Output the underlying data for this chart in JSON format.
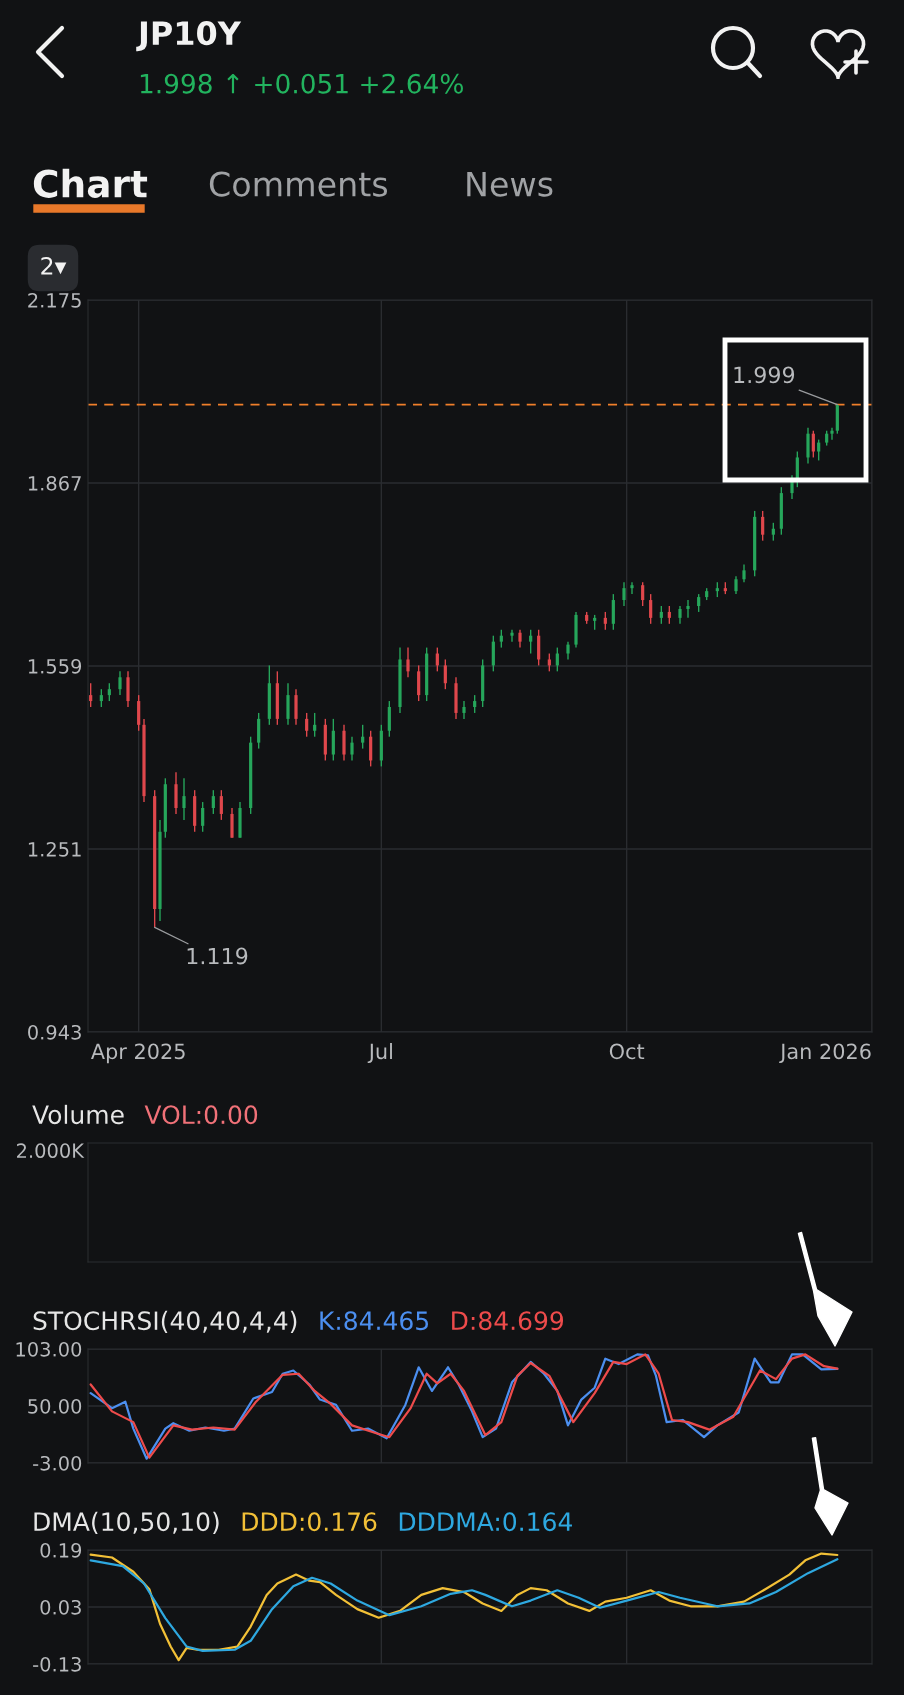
{
  "chart_data": [
    {
      "type": "candlestick",
      "title": "JP10Y",
      "subtitle": "1.998 ↑ +0.051 +2.64%",
      "annotations": [
        "Chart",
        "Comments",
        "News",
        "2▾",
        {
          "text": "1.119",
          "x": "2025-04-07",
          "y": 1.119
        },
        {
          "text": "1.999",
          "x": "2025-12-19",
          "y": 1.999
        }
      ],
      "x": [
        "2025-03-14",
        "2025-03-18",
        "2025-03-21",
        "2025-03-25",
        "2025-03-28",
        "2025-04-01",
        "2025-04-03",
        "2025-04-07",
        "2025-04-09",
        "2025-04-11",
        "2025-04-15",
        "2025-04-18",
        "2025-04-22",
        "2025-04-25",
        "2025-04-29",
        "2025-05-02",
        "2025-05-06",
        "2025-05-09",
        "2025-05-13",
        "2025-05-16",
        "2025-05-20",
        "2025-05-23",
        "2025-05-27",
        "2025-05-30",
        "2025-06-03",
        "2025-06-06",
        "2025-06-10",
        "2025-06-13",
        "2025-06-17",
        "2025-06-20",
        "2025-06-24",
        "2025-06-27",
        "2025-07-01",
        "2025-07-04",
        "2025-07-08",
        "2025-07-11",
        "2025-07-15",
        "2025-07-18",
        "2025-07-22",
        "2025-07-25",
        "2025-07-29",
        "2025-08-01",
        "2025-08-05",
        "2025-08-08",
        "2025-08-12",
        "2025-08-15",
        "2025-08-19",
        "2025-08-22",
        "2025-08-26",
        "2025-08-29",
        "2025-09-02",
        "2025-09-05",
        "2025-09-09",
        "2025-09-12",
        "2025-09-16",
        "2025-09-19",
        "2025-09-23",
        "2025-09-26",
        "2025-09-30",
        "2025-10-03",
        "2025-10-07",
        "2025-10-10",
        "2025-10-14",
        "2025-10-17",
        "2025-10-21",
        "2025-10-24",
        "2025-10-28",
        "2025-10-31",
        "2025-11-04",
        "2025-11-07",
        "2025-11-11",
        "2025-11-14",
        "2025-11-18",
        "2025-11-21",
        "2025-11-25",
        "2025-11-28",
        "2025-12-02",
        "2025-12-04",
        "2025-12-08",
        "2025-12-10",
        "2025-12-12",
        "2025-12-15",
        "2025-12-17",
        "2025-12-19"
      ],
      "ohlc": [
        [
          1.51,
          1.53,
          1.49,
          1.5
        ],
        [
          1.5,
          1.52,
          1.49,
          1.51
        ],
        [
          1.51,
          1.53,
          1.5,
          1.52
        ],
        [
          1.52,
          1.55,
          1.51,
          1.54
        ],
        [
          1.54,
          1.55,
          1.49,
          1.5
        ],
        [
          1.5,
          1.51,
          1.45,
          1.46
        ],
        [
          1.46,
          1.47,
          1.33,
          1.34
        ],
        [
          1.34,
          1.35,
          1.119,
          1.15
        ],
        [
          1.15,
          1.3,
          1.13,
          1.28
        ],
        [
          1.28,
          1.37,
          1.27,
          1.36
        ],
        [
          1.36,
          1.38,
          1.31,
          1.32
        ],
        [
          1.32,
          1.37,
          1.3,
          1.34
        ],
        [
          1.34,
          1.35,
          1.28,
          1.29
        ],
        [
          1.29,
          1.33,
          1.28,
          1.32
        ],
        [
          1.32,
          1.35,
          1.31,
          1.34
        ],
        [
          1.34,
          1.35,
          1.3,
          1.31
        ],
        [
          1.31,
          1.32,
          1.27,
          1.27
        ],
        [
          1.27,
          1.33,
          1.27,
          1.32
        ],
        [
          1.32,
          1.44,
          1.31,
          1.43
        ],
        [
          1.43,
          1.48,
          1.42,
          1.47
        ],
        [
          1.47,
          1.56,
          1.46,
          1.53
        ],
        [
          1.53,
          1.55,
          1.46,
          1.47
        ],
        [
          1.47,
          1.53,
          1.46,
          1.51
        ],
        [
          1.51,
          1.52,
          1.46,
          1.47
        ],
        [
          1.47,
          1.48,
          1.44,
          1.45
        ],
        [
          1.45,
          1.48,
          1.44,
          1.46
        ],
        [
          1.46,
          1.47,
          1.4,
          1.41
        ],
        [
          1.41,
          1.47,
          1.4,
          1.45
        ],
        [
          1.45,
          1.46,
          1.4,
          1.41
        ],
        [
          1.41,
          1.44,
          1.4,
          1.43
        ],
        [
          1.43,
          1.46,
          1.42,
          1.44
        ],
        [
          1.44,
          1.45,
          1.39,
          1.4
        ],
        [
          1.4,
          1.46,
          1.39,
          1.45
        ],
        [
          1.45,
          1.5,
          1.44,
          1.49
        ],
        [
          1.49,
          1.59,
          1.48,
          1.57
        ],
        [
          1.57,
          1.59,
          1.54,
          1.55
        ],
        [
          1.55,
          1.56,
          1.5,
          1.51
        ],
        [
          1.51,
          1.59,
          1.5,
          1.58
        ],
        [
          1.58,
          1.59,
          1.55,
          1.56
        ],
        [
          1.56,
          1.57,
          1.52,
          1.53
        ],
        [
          1.53,
          1.54,
          1.47,
          1.48
        ],
        [
          1.48,
          1.5,
          1.47,
          1.49
        ],
        [
          1.49,
          1.51,
          1.48,
          1.5
        ],
        [
          1.5,
          1.57,
          1.49,
          1.56
        ],
        [
          1.56,
          1.61,
          1.55,
          1.6
        ],
        [
          1.6,
          1.62,
          1.59,
          1.61
        ],
        [
          1.61,
          1.62,
          1.6,
          1.615
        ],
        [
          1.615,
          1.62,
          1.59,
          1.6
        ],
        [
          1.6,
          1.62,
          1.58,
          1.61
        ],
        [
          1.61,
          1.62,
          1.56,
          1.57
        ],
        [
          1.57,
          1.58,
          1.55,
          1.56
        ],
        [
          1.56,
          1.59,
          1.55,
          1.58
        ],
        [
          1.58,
          1.6,
          1.57,
          1.595
        ],
        [
          1.595,
          1.65,
          1.59,
          1.645
        ],
        [
          1.645,
          1.65,
          1.63,
          1.635
        ],
        [
          1.635,
          1.645,
          1.62,
          1.64
        ],
        [
          1.64,
          1.65,
          1.62,
          1.63
        ],
        [
          1.63,
          1.68,
          1.62,
          1.67
        ],
        [
          1.67,
          1.7,
          1.66,
          1.69
        ],
        [
          1.69,
          1.7,
          1.68,
          1.695
        ],
        [
          1.695,
          1.7,
          1.66,
          1.67
        ],
        [
          1.67,
          1.68,
          1.63,
          1.64
        ],
        [
          1.64,
          1.66,
          1.63,
          1.65
        ],
        [
          1.65,
          1.66,
          1.63,
          1.64
        ],
        [
          1.64,
          1.66,
          1.63,
          1.655
        ],
        [
          1.655,
          1.67,
          1.64,
          1.66
        ],
        [
          1.66,
          1.68,
          1.65,
          1.675
        ],
        [
          1.675,
          1.69,
          1.67,
          1.685
        ],
        [
          1.685,
          1.7,
          1.675,
          1.69
        ],
        [
          1.69,
          1.7,
          1.68,
          1.685
        ],
        [
          1.685,
          1.71,
          1.68,
          1.705
        ],
        [
          1.705,
          1.73,
          1.7,
          1.72
        ],
        [
          1.72,
          1.82,
          1.71,
          1.81
        ],
        [
          1.81,
          1.82,
          1.77,
          1.78
        ],
        [
          1.78,
          1.8,
          1.77,
          1.79
        ],
        [
          1.79,
          1.86,
          1.78,
          1.85
        ],
        [
          1.85,
          1.88,
          1.84,
          1.87
        ],
        [
          1.87,
          1.92,
          1.86,
          1.91
        ],
        [
          1.91,
          1.96,
          1.9,
          1.95
        ],
        [
          1.95,
          1.955,
          1.91,
          1.92
        ],
        [
          1.92,
          1.94,
          1.905,
          1.935
        ],
        [
          1.935,
          1.955,
          1.93,
          1.95
        ],
        [
          1.95,
          1.96,
          1.94,
          1.955
        ],
        [
          1.955,
          1.999,
          1.95,
          1.998
        ]
      ],
      "colors": [
        "#e0474c",
        "#26a65b",
        "#26a65b",
        "#26a65b",
        "#e0474c",
        "#e0474c",
        "#e0474c",
        "#e0474c",
        "#26a65b",
        "#26a65b",
        "#e0474c",
        "#26a65b",
        "#e0474c",
        "#26a65b",
        "#26a65b",
        "#e0474c",
        "#e0474c",
        "#26a65b",
        "#26a65b",
        "#26a65b",
        "#26a65b",
        "#e0474c",
        "#26a65b",
        "#e0474c",
        "#e0474c",
        "#26a65b",
        "#e0474c",
        "#26a65b",
        "#e0474c",
        "#26a65b",
        "#26a65b",
        "#e0474c",
        "#26a65b",
        "#26a65b",
        "#26a65b",
        "#e0474c",
        "#e0474c",
        "#26a65b",
        "#e0474c",
        "#e0474c",
        "#e0474c",
        "#26a65b",
        "#26a65b",
        "#26a65b",
        "#26a65b",
        "#26a65b",
        "#26a65b",
        "#e0474c",
        "#26a65b",
        "#e0474c",
        "#e0474c",
        "#26a65b",
        "#26a65b",
        "#26a65b",
        "#e0474c",
        "#26a65b",
        "#e0474c",
        "#26a65b",
        "#26a65b",
        "#26a65b",
        "#e0474c",
        "#e0474c",
        "#26a65b",
        "#e0474c",
        "#26a65b",
        "#26a65b",
        "#26a65b",
        "#26a65b",
        "#26a65b",
        "#e0474c",
        "#26a65b",
        "#26a65b",
        "#26a65b",
        "#e0474c",
        "#26a65b",
        "#26a65b",
        "#26a65b",
        "#26a65b",
        "#26a65b",
        "#e0474c",
        "#26a65b",
        "#26a65b",
        "#26a65b",
        "#26a65b"
      ],
      "xlim": [
        "2025-03-13",
        "2026-01-01"
      ],
      "xticks": [
        {
          "value": "2025-04-01",
          "label": "Apr 2025"
        },
        {
          "value": "2025-07-01",
          "label": "Jul"
        },
        {
          "value": "2025-10-01",
          "label": "Oct"
        },
        {
          "value": "2026-01-01",
          "label": "Jan 2026"
        }
      ],
      "ylim": [
        0.943,
        2.175
      ],
      "yticks": [
        0.943,
        1.251,
        1.559,
        1.867,
        2.175
      ],
      "grid": true,
      "ref_lines": [
        {
          "axis": "y",
          "value": 1.999,
          "color": "#f07f2a",
          "line_style": "dashed"
        }
      ]
    },
    {
      "type": "other",
      "title": "Volume",
      "subtitle": "VOL:0.00",
      "annotations": [
        "2.000K"
      ]
    },
    {
      "type": "line",
      "title": "STOCHRSI(40,40,4,4)",
      "legend": "top",
      "xlim": [
        "2025-03-13",
        "2026-01-01"
      ],
      "xticks": [
        {
          "value": "2025-07-01",
          "label": null
        },
        {
          "value": "2025-10-01",
          "label": null
        }
      ],
      "ylim": [
        -3,
        103
      ],
      "yticks": [
        {
          "value": -3,
          "label": "-3.00"
        },
        {
          "value": 50,
          "label": "50.00"
        },
        {
          "value": 103,
          "label": "103.00"
        }
      ],
      "grid": true,
      "tick_labels": "y",
      "series": [
        {
          "name": "K:84.465",
          "color": "#4c8ff0",
          "x": [
            "2025-03-14",
            "2025-03-22",
            "2025-03-27",
            "2025-03-30",
            "2025-04-04",
            "2025-04-11",
            "2025-04-14",
            "2025-04-20",
            "2025-04-26",
            "2025-05-03",
            "2025-05-07",
            "2025-05-14",
            "2025-05-21",
            "2025-05-25",
            "2025-05-29",
            "2025-06-04",
            "2025-06-08",
            "2025-06-14",
            "2025-06-20",
            "2025-06-26",
            "2025-07-03",
            "2025-07-10",
            "2025-07-15",
            "2025-07-20",
            "2025-07-26",
            "2025-07-30",
            "2025-08-04",
            "2025-08-08",
            "2025-08-13",
            "2025-08-19",
            "2025-08-26",
            "2025-08-31",
            "2025-09-05",
            "2025-09-09",
            "2025-09-14",
            "2025-09-19",
            "2025-09-23",
            "2025-09-28",
            "2025-10-05",
            "2025-10-09",
            "2025-10-12",
            "2025-10-16",
            "2025-10-22",
            "2025-10-30",
            "2025-11-04",
            "2025-11-12",
            "2025-11-18",
            "2025-11-24",
            "2025-11-27",
            "2025-12-02",
            "2025-12-06",
            "2025-12-13",
            "2025-12-19"
          ],
          "values": [
            62,
            48,
            54,
            29,
            1,
            29,
            34,
            27,
            30,
            27,
            29,
            57,
            63,
            80,
            83,
            70,
            56,
            51,
            27,
            29,
            20,
            51,
            86,
            64,
            86,
            70,
            45,
            21,
            29,
            72,
            91,
            80,
            64,
            32,
            56,
            67,
            94,
            89,
            98,
            97,
            78,
            35,
            37,
            21,
            32,
            44,
            94,
            72,
            72,
            98,
            98,
            84,
            84.465
          ]
        },
        {
          "name": "D:84.699",
          "color": "#ee4b4b",
          "x": [
            "2025-03-14",
            "2025-03-22",
            "2025-03-30",
            "2025-04-05",
            "2025-04-14",
            "2025-04-21",
            "2025-04-29",
            "2025-05-07",
            "2025-05-15",
            "2025-05-25",
            "2025-05-31",
            "2025-06-06",
            "2025-06-12",
            "2025-06-20",
            "2025-06-30",
            "2025-07-04",
            "2025-07-12",
            "2025-07-18",
            "2025-07-22",
            "2025-07-27",
            "2025-08-01",
            "2025-08-09",
            "2025-08-15",
            "2025-08-21",
            "2025-08-26",
            "2025-09-02",
            "2025-09-11",
            "2025-09-19",
            "2025-09-26",
            "2025-10-01",
            "2025-10-08",
            "2025-10-13",
            "2025-10-18",
            "2025-10-24",
            "2025-11-01",
            "2025-11-10",
            "2025-11-20",
            "2025-11-26",
            "2025-12-02",
            "2025-12-07",
            "2025-12-14",
            "2025-12-19"
          ],
          "values": [
            70,
            45,
            35,
            2,
            32,
            28,
            30,
            28,
            54,
            79,
            80,
            64,
            52,
            32,
            24,
            21,
            48,
            80,
            71,
            80,
            64,
            23,
            35,
            78,
            90,
            78,
            35,
            62,
            91,
            89,
            98,
            80,
            37,
            35,
            28,
            40,
            83,
            75,
            94,
            98,
            87,
            84.699
          ]
        }
      ]
    },
    {
      "type": "line",
      "title": "DMA(10,50,10)",
      "legend": "top",
      "xlim": [
        "2025-03-13",
        "2026-01-01"
      ],
      "xticks": [
        {
          "value": "2025-07-01",
          "label": null
        },
        {
          "value": "2025-10-01",
          "label": null
        }
      ],
      "ylim": [
        -0.13,
        0.19
      ],
      "yticks": [
        -0.13,
        0.03,
        0.19
      ],
      "grid": true,
      "tick_labels": "y",
      "series": [
        {
          "name": "DDD:0.176",
          "color": "#f2c037",
          "x": [
            "2025-03-14",
            "2025-03-22",
            "2025-03-30",
            "2025-04-05",
            "2025-04-09",
            "2025-04-13",
            "2025-04-16",
            "2025-04-19",
            "2025-04-23",
            "2025-05-01",
            "2025-05-08",
            "2025-05-13",
            "2025-05-19",
            "2025-05-23",
            "2025-05-30",
            "2025-06-04",
            "2025-06-08",
            "2025-06-14",
            "2025-06-22",
            "2025-06-30",
            "2025-07-08",
            "2025-07-16",
            "2025-07-24",
            "2025-08-01",
            "2025-08-08",
            "2025-08-15",
            "2025-08-21",
            "2025-08-26",
            "2025-09-01",
            "2025-09-09",
            "2025-09-17",
            "2025-09-23",
            "2025-10-01",
            "2025-10-10",
            "2025-10-17",
            "2025-10-25",
            "2025-11-04",
            "2025-11-14",
            "2025-11-22",
            "2025-12-01",
            "2025-12-07",
            "2025-12-13",
            "2025-12-19"
          ],
          "values": [
            0.177,
            0.169,
            0.129,
            0.08,
            -0.017,
            -0.081,
            -0.119,
            -0.085,
            -0.09,
            -0.09,
            -0.081,
            -0.025,
            0.064,
            0.096,
            0.121,
            0.104,
            0.1,
            0.064,
            0.024,
            0.0,
            0.019,
            0.064,
            0.083,
            0.072,
            0.04,
            0.019,
            0.064,
            0.083,
            0.077,
            0.04,
            0.019,
            0.045,
            0.056,
            0.077,
            0.048,
            0.032,
            0.032,
            0.045,
            0.08,
            0.121,
            0.161,
            0.18,
            0.176
          ]
        },
        {
          "name": "DDDMA:0.164",
          "color": "#2ea8e0",
          "x": [
            "2025-03-14",
            "2025-03-26",
            "2025-04-03",
            "2025-04-11",
            "2025-04-19",
            "2025-04-25",
            "2025-05-07",
            "2025-05-13",
            "2025-05-21",
            "2025-05-29",
            "2025-06-05",
            "2025-06-12",
            "2025-06-22",
            "2025-07-04",
            "2025-07-16",
            "2025-07-27",
            "2025-08-04",
            "2025-08-09",
            "2025-08-19",
            "2025-08-26",
            "2025-09-05",
            "2025-09-13",
            "2025-09-21",
            "2025-10-01",
            "2025-10-13",
            "2025-10-21",
            "2025-11-04",
            "2025-11-16",
            "2025-11-26",
            "2025-12-08",
            "2025-12-19"
          ],
          "values": [
            0.161,
            0.145,
            0.096,
            -0.001,
            -0.081,
            -0.093,
            -0.09,
            -0.065,
            0.024,
            0.088,
            0.112,
            0.096,
            0.048,
            0.007,
            0.032,
            0.067,
            0.077,
            0.064,
            0.032,
            0.048,
            0.077,
            0.056,
            0.028,
            0.048,
            0.072,
            0.056,
            0.032,
            0.04,
            0.072,
            0.125,
            0.164
          ]
        }
      ]
    }
  ]
}
